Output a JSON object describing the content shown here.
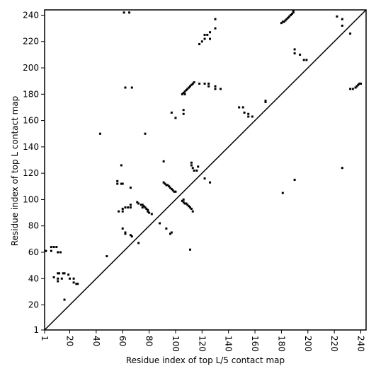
{
  "chart_data": {
    "type": "scatter",
    "x_label": "Residue index of top L/5 contact map",
    "y_label": "Residue index of top L contact map",
    "xlim": [
      1,
      244
    ],
    "ylim": [
      1,
      244
    ],
    "xticks": [
      1,
      20,
      40,
      60,
      80,
      100,
      120,
      140,
      160,
      180,
      200,
      220,
      240
    ],
    "yticks": [
      1,
      20,
      40,
      60,
      80,
      100,
      120,
      140,
      160,
      180,
      200,
      220,
      240
    ],
    "diagonal": true,
    "color": "#000000",
    "x": [
      2,
      6,
      6,
      8,
      10,
      11,
      13,
      8,
      11,
      12,
      15,
      16,
      11,
      11,
      14,
      19,
      20,
      23,
      23,
      25,
      26,
      16,
      48,
      43,
      56,
      56,
      59,
      60,
      59,
      66,
      57,
      60,
      60,
      62,
      64,
      66,
      66,
      60,
      62,
      62,
      67,
      66,
      72,
      62,
      67,
      77,
      61,
      65,
      88,
      93,
      97,
      96,
      91,
      91,
      97,
      100,
      106,
      106,
      111,
      105,
      106,
      107,
      108,
      109,
      110,
      111,
      112,
      113,
      114,
      107,
      118,
      122,
      125,
      125,
      130,
      130,
      134,
      118,
      120,
      122,
      122,
      124,
      126,
      126,
      130,
      130,
      112,
      112,
      113,
      114,
      116,
      117,
      122,
      126,
      148,
      151,
      152,
      155,
      155,
      158,
      168,
      168,
      181,
      190,
      222,
      226,
      226,
      232,
      226,
      190,
      190,
      194,
      197,
      199,
      180,
      181,
      182,
      183,
      184,
      185,
      186,
      187,
      188,
      189,
      189,
      232,
      234,
      236,
      237,
      238,
      239,
      240,
      71,
      72,
      74,
      75,
      76,
      77,
      78,
      79,
      79,
      80,
      82,
      75,
      92,
      93,
      94,
      95,
      96,
      97,
      98,
      99,
      100,
      106,
      106,
      107,
      108,
      109,
      110,
      111,
      112,
      113,
      105
    ],
    "y": [
      61,
      61,
      64,
      64,
      64,
      60,
      60,
      41,
      44,
      44,
      44,
      44,
      40,
      38,
      40,
      43,
      40,
      40,
      37,
      36,
      36,
      24,
      57,
      150,
      112,
      114,
      112,
      112,
      126,
      109,
      91,
      91,
      93,
      94,
      94,
      94,
      96,
      78,
      75,
      74,
      72,
      73,
      67,
      185,
      185,
      150,
      242,
      242,
      82,
      78,
      75,
      74,
      113,
      129,
      166,
      162,
      165,
      168,
      62,
      180,
      181,
      182,
      183,
      184,
      185,
      186,
      187,
      188,
      189,
      180,
      188,
      188,
      188,
      186,
      186,
      184,
      184,
      218,
      220,
      222,
      225,
      225,
      227,
      222,
      230,
      237,
      126,
      128,
      124,
      122,
      122,
      125,
      116,
      113,
      170,
      170,
      166,
      165,
      163,
      163,
      174,
      175,
      105,
      115,
      239,
      237,
      232,
      226,
      124,
      214,
      211,
      210,
      206,
      206,
      234,
      235,
      235,
      236,
      237,
      238,
      239,
      240,
      241,
      242,
      243,
      184,
      184,
      185,
      186,
      187,
      188,
      188,
      98,
      97,
      96,
      96,
      95,
      94,
      93,
      92,
      91,
      90,
      89,
      94,
      112,
      111,
      111,
      110,
      109,
      108,
      107,
      106,
      106,
      98,
      100,
      97,
      97,
      96,
      95,
      94,
      93,
      91,
      99
    ]
  }
}
